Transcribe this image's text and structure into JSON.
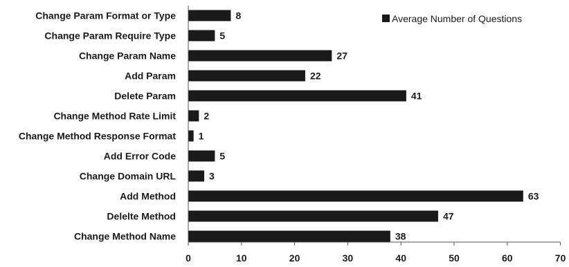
{
  "chart_data": {
    "type": "bar",
    "orientation": "horizontal",
    "categories": [
      "Change Param Format or Type",
      "Change Param Require Type",
      "Change Param Name",
      "Add Param",
      "Delete Param",
      "Change Method Rate Limit",
      "Change Method Response Format",
      "Add Error Code",
      "Change Domain URL",
      "Add Method",
      "Delelte Method",
      "Change Method Name"
    ],
    "series": [
      {
        "name": "Average Number of Questions",
        "values": [
          8,
          5,
          27,
          22,
          41,
          2,
          1,
          5,
          3,
          63,
          47,
          38
        ]
      }
    ],
    "xlim": [
      0,
      70
    ],
    "xticks": [
      0,
      10,
      20,
      30,
      40,
      50,
      60,
      70
    ],
    "legend_position": "top-right",
    "grid": false,
    "bar_color": "#1a1a1a"
  }
}
